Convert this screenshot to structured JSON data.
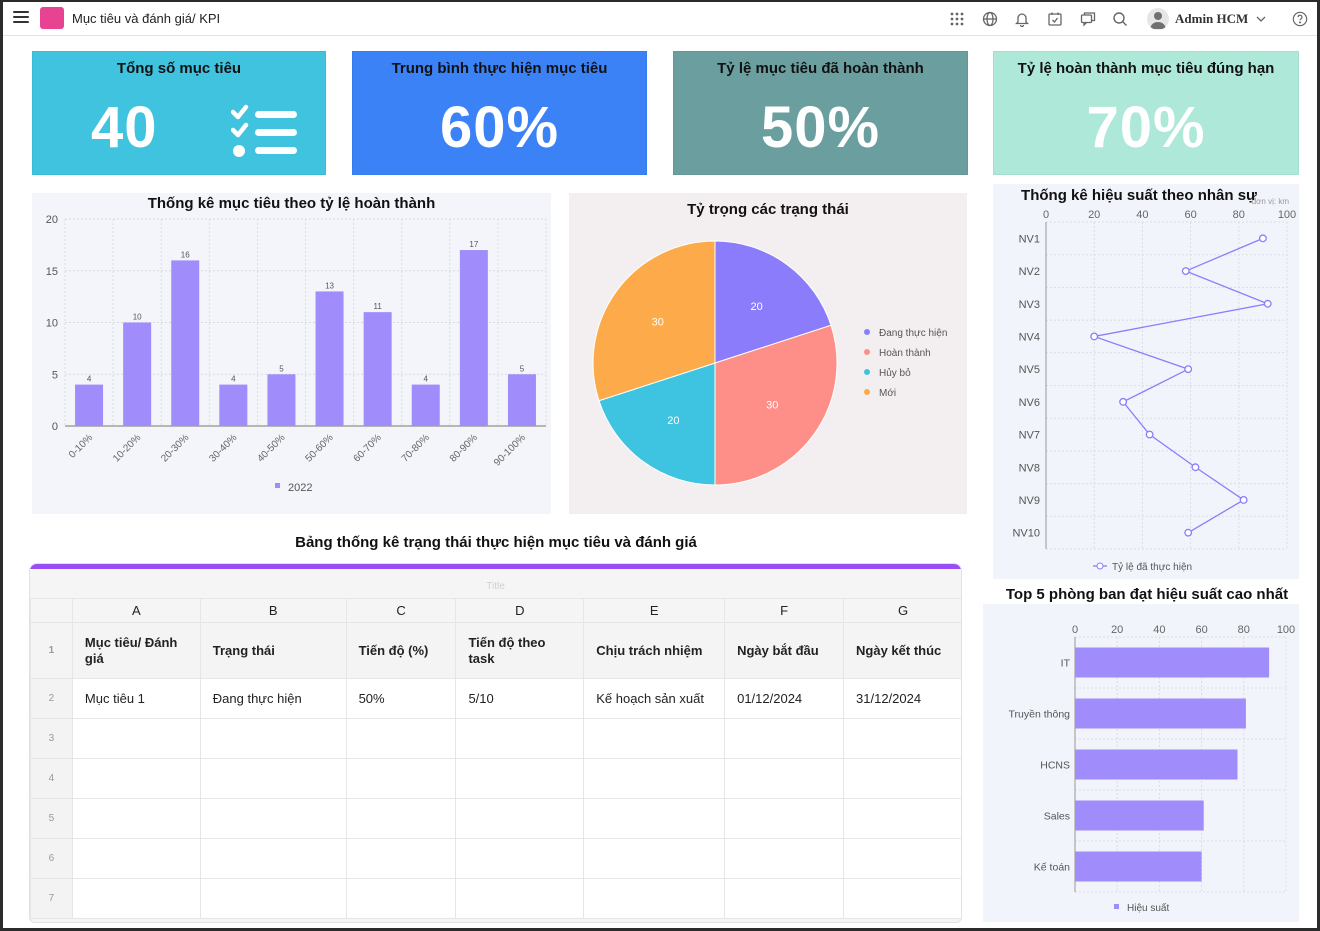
{
  "header": {
    "title": "Mục tiêu và đánh giá/ KPI",
    "user_name": "Admin HCM",
    "icons": [
      "apps-grid-icon",
      "globe-icon",
      "bell-icon",
      "calendar-check-icon",
      "chat-icon",
      "search-icon",
      "user-avatar-icon",
      "chevron-down-icon",
      "help-icon"
    ]
  },
  "kpis": [
    {
      "title": "Tổng số mục tiêu",
      "value": "40",
      "color": "#3fc3df",
      "icon": "checklist-icon"
    },
    {
      "title": "Trung bình thực hiện mục tiêu",
      "value": "60%",
      "color": "#3b82f6"
    },
    {
      "title": "Tỷ lệ mục tiêu đã hoàn thành",
      "value": "50%",
      "color": "#6b9e9f"
    },
    {
      "title": "Tỷ lệ hoàn thành mục tiêu đúng hạn",
      "value": "70%",
      "color": "#aee8d8"
    }
  ],
  "chart_data": [
    {
      "type": "bar",
      "title": "Thống kê mục tiêu theo tỷ lệ hoàn thành",
      "categories": [
        "0-10%",
        "10-20%",
        "20-30%",
        "30-40%",
        "40-50%",
        "50-60%",
        "60-70%",
        "70-80%",
        "80-90%",
        "90-100%"
      ],
      "series": [
        {
          "name": "2022",
          "values": [
            4,
            10,
            16,
            4,
            5,
            13,
            11,
            4,
            17,
            5
          ],
          "color": "#a08cfa"
        }
      ],
      "yticks": [
        0,
        5,
        10,
        15,
        20
      ],
      "ylim": [
        0,
        20
      ],
      "xlabel": "",
      "ylabel": "",
      "grid": true,
      "legend": "bottom",
      "data_labels": true
    },
    {
      "type": "pie",
      "title": "Tỷ trọng các trạng thái",
      "slices": [
        {
          "label": "Đang thực hiện",
          "value": 20,
          "color": "#8b7cfc"
        },
        {
          "label": "Hoàn thành",
          "value": 30,
          "color": "#fd8f88"
        },
        {
          "label": "Hủy bỏ",
          "value": 20,
          "color": "#3ec4e0"
        },
        {
          "label": "Mới",
          "value": 30,
          "color": "#fdab4a"
        }
      ],
      "legend": "right",
      "data_labels": true
    },
    {
      "type": "line",
      "orientation": "horizontal",
      "title": "Thống kê hiệu suất theo nhân sự",
      "unit_label": "đơn vị: km",
      "categories": [
        "NV1",
        "NV2",
        "NV3",
        "NV4",
        "NV5",
        "NV6",
        "NV7",
        "NV8",
        "NV9",
        "NV10"
      ],
      "series": [
        {
          "name": "Tỷ lệ đã thực hiện",
          "values": [
            90,
            58,
            92,
            20,
            59,
            32,
            43,
            62,
            82,
            59
          ],
          "color": "#8b7cfc"
        }
      ],
      "xticks": [
        0,
        20,
        40,
        60,
        80,
        100
      ],
      "xlim": [
        0,
        100
      ],
      "grid": true,
      "legend": "bottom"
    },
    {
      "type": "bar",
      "orientation": "horizontal",
      "title": "Top 5 phòng ban đạt hiệu suất cao nhất",
      "categories": [
        "IT",
        "Truyền thông",
        "HCNS",
        "Sales",
        "Kế toán"
      ],
      "series": [
        {
          "name": "Hiệu suất",
          "values": [
            92,
            81,
            77,
            61,
            60
          ],
          "color": "#a08cfa"
        }
      ],
      "xticks": [
        0,
        20,
        40,
        60,
        80,
        100
      ],
      "xlim": [
        0,
        100
      ],
      "grid": true,
      "legend": "bottom"
    }
  ],
  "table": {
    "title": "Bảng thống kê trạng thái thực hiện mục tiêu và đánh giá",
    "sheet_title_placeholder": "Title",
    "column_letters": [
      "A",
      "B",
      "C",
      "D",
      "E",
      "F",
      "G"
    ],
    "row_numbers": [
      "1",
      "2",
      "3",
      "4",
      "5",
      "6",
      "7"
    ],
    "headers": [
      "Mục tiêu/ Đánh giá",
      "Trạng thái",
      "Tiến độ (%)",
      "Tiến độ theo task",
      "Chịu trách nhiệm",
      "Ngày bắt đầu",
      "Ngày kết thúc"
    ],
    "rows": [
      [
        "Mục tiêu 1",
        "Đang thực hiện",
        "50%",
        "5/10",
        "Kế hoạch sản xuất",
        "01/12/2024",
        "31/12/2024"
      ],
      [
        "",
        "",
        "",
        "",
        "",
        "",
        ""
      ],
      [
        "",
        "",
        "",
        "",
        "",
        "",
        ""
      ],
      [
        "",
        "",
        "",
        "",
        "",
        "",
        ""
      ],
      [
        "",
        "",
        "",
        "",
        "",
        "",
        ""
      ],
      [
        "",
        "",
        "",
        "",
        "",
        "",
        ""
      ]
    ]
  }
}
